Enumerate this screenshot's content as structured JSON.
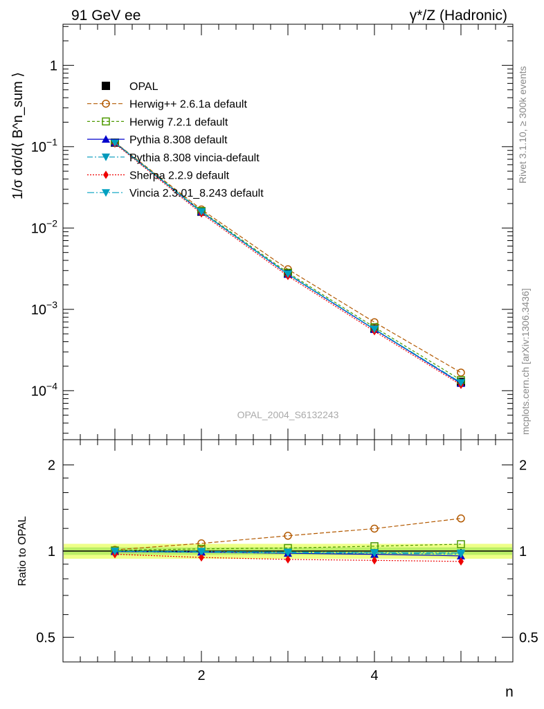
{
  "header": {
    "left_label": "91 GeV ee",
    "right_label": "γ*/Z (Hadronic)"
  },
  "side_labels": {
    "rivet": "Rivet 3.1.10, ≥ 300k events",
    "mcplots": "mcplots.cern.ch [arXiv:1306.3436]"
  },
  "watermark": "OPAL_2004_S6132243",
  "colors": {
    "opal": "#000000",
    "herwigpp": "#b35900",
    "herwig7": "#4d9900",
    "pythia": "#0000cc",
    "pythia_vincia": "#0099bb",
    "sherpa": "#ee0000",
    "vincia": "#00a0c0",
    "band_outer": "#eeff88",
    "band_inner": "#bbee66"
  },
  "chart_data": [
    {
      "type": "line",
      "panel": "main",
      "title": "",
      "ylabel": "1/σ dσ/d⟨ B^n_sum ⟩",
      "xlabel": "",
      "yscale": "log",
      "xlim": [
        0.4,
        5.6
      ],
      "ylim": [
        2.5e-05,
        3.2
      ],
      "y_tick_labels": [
        {
          "value": 1,
          "base": "1",
          "exp": ""
        },
        {
          "value": 0.1,
          "base": "10",
          "exp": "−1"
        },
        {
          "value": 0.01,
          "base": "10",
          "exp": "−2"
        },
        {
          "value": 0.001,
          "base": "10",
          "exp": "−3"
        },
        {
          "value": 0.0001,
          "base": "10",
          "exp": "−4"
        }
      ],
      "x": [
        1,
        2,
        3,
        4,
        5
      ],
      "series": [
        {
          "name": "OPAL",
          "key": "opal",
          "marker": "square-filled",
          "dash": "",
          "values": [
            0.112,
            0.0159,
            0.00275,
            0.00058,
            0.000128
          ]
        },
        {
          "name": "Herwig++ 2.6.1a default",
          "key": "herwigpp",
          "marker": "circle-open",
          "dash": "6,3",
          "values": [
            0.113,
            0.0169,
            0.00311,
            0.000695,
            0.000167
          ]
        },
        {
          "name": "Herwig 7.2.1 default",
          "key": "herwig7",
          "marker": "square-open",
          "dash": "4,3",
          "values": [
            0.1125,
            0.0162,
            0.00282,
            0.000603,
            0.000135
          ]
        },
        {
          "name": "Pythia 8.308 default",
          "key": "pythia",
          "marker": "triangle-up",
          "dash": "",
          "values": [
            0.1115,
            0.0158,
            0.0027,
            0.000565,
            0.000123
          ]
        },
        {
          "name": "Pythia 8.308 vincia-default",
          "key": "pythia_vincia",
          "marker": "triangle-down",
          "dash": "8,3,2,3",
          "values": [
            0.1118,
            0.0157,
            0.00271,
            0.00057,
            0.000125
          ]
        },
        {
          "name": "Sherpa 2.2.9 default",
          "key": "sherpa",
          "marker": "diamond",
          "dash": "2,2",
          "values": [
            0.1092,
            0.0151,
            0.00257,
            0.000538,
            0.000118
          ]
        },
        {
          "name": "Vincia 2.3.01_8.243 default",
          "key": "vincia",
          "marker": "triangle-down",
          "dash": "10,3,2,3",
          "values": [
            0.1119,
            0.0159,
            0.00273,
            0.000572,
            0.000126
          ]
        }
      ]
    },
    {
      "type": "line",
      "panel": "ratio",
      "ylabel": "Ratio to OPAL",
      "xlabel": "n",
      "yscale": "log",
      "xlim": [
        0.4,
        5.6
      ],
      "ylim": [
        0.41,
        2.45
      ],
      "y_tick_labels": [
        {
          "value": 2,
          "label": "2"
        },
        {
          "value": 1,
          "label": "1"
        },
        {
          "value": 0.5,
          "label": "0.5"
        }
      ],
      "x_tick_labels": [
        {
          "value": 2,
          "label": "2"
        },
        {
          "value": 4,
          "label": "4"
        }
      ],
      "band": {
        "x": [
          0.4,
          5.6
        ],
        "outer": [
          0.94,
          1.06
        ],
        "inner": [
          0.97,
          1.03
        ]
      },
      "x": [
        1,
        2,
        3,
        4,
        5
      ],
      "series": [
        {
          "name": "Herwig++ 2.6.1a default",
          "key": "herwigpp",
          "marker": "circle-open",
          "dash": "6,3",
          "values": [
            1.01,
            1.064,
            1.131,
            1.198,
            1.3
          ]
        },
        {
          "name": "Herwig 7.2.1 default",
          "key": "herwig7",
          "marker": "square-open",
          "dash": "4,3",
          "values": [
            1.005,
            1.018,
            1.025,
            1.04,
            1.057
          ]
        },
        {
          "name": "Pythia 8.308 default",
          "key": "pythia",
          "marker": "triangle-up",
          "dash": "",
          "values": [
            0.996,
            0.992,
            0.982,
            0.974,
            0.962
          ]
        },
        {
          "name": "Pythia 8.308 vincia-default",
          "key": "pythia_vincia",
          "marker": "triangle-down",
          "dash": "8,3,2,3",
          "values": [
            0.998,
            0.99,
            0.985,
            0.983,
            0.975
          ]
        },
        {
          "name": "Sherpa 2.2.9 default",
          "key": "sherpa",
          "marker": "diamond",
          "dash": "2,2",
          "values": [
            0.975,
            0.95,
            0.935,
            0.928,
            0.92
          ]
        },
        {
          "name": "Vincia 2.3.01_8.243 default",
          "key": "vincia",
          "marker": "triangle-down",
          "dash": "10,3,2,3",
          "values": [
            0.999,
            0.998,
            0.992,
            0.988,
            0.985
          ]
        }
      ]
    }
  ]
}
